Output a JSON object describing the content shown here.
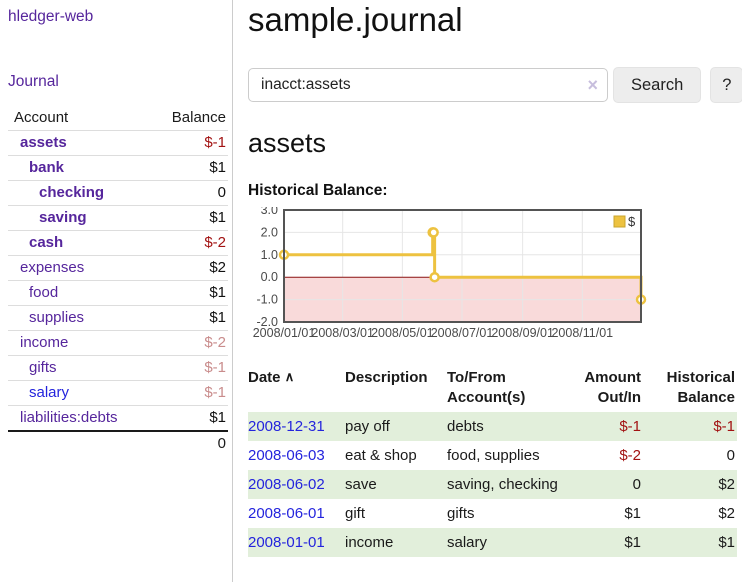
{
  "colors": {
    "link_purple": "#56269c",
    "link_blue": "#2424dd",
    "negative_strong": "#a21212",
    "negative_dim": "#c98c8c",
    "row_stripe_green": "#e2efdb",
    "button_bg": "#ededed",
    "chart_line_gold": "#edc240",
    "chart_negative_fill": "#f9dada",
    "chart_zero_line": "#8b1313",
    "chart_border": "#545454",
    "chart_grid": "#e6e6e6"
  },
  "sidebar": {
    "app_title": "hledger-web",
    "journal_label": "Journal",
    "table": {
      "account_header": "Account",
      "balance_header": "Balance",
      "total": "0"
    },
    "accounts": [
      {
        "name": "assets",
        "depth": 1,
        "bold": true,
        "balance": "$-1",
        "balance_class": "neg-strong"
      },
      {
        "name": "bank",
        "depth": 2,
        "bold": true,
        "balance": "$1",
        "balance_class": ""
      },
      {
        "name": "checking",
        "depth": 3,
        "bold": true,
        "balance": "0",
        "balance_class": ""
      },
      {
        "name": "saving",
        "depth": 3,
        "bold": true,
        "balance": "$1",
        "balance_class": ""
      },
      {
        "name": "cash",
        "depth": 2,
        "bold": true,
        "balance": "$-2",
        "balance_class": "neg-strong"
      },
      {
        "name": "expenses",
        "depth": 1,
        "bold": false,
        "balance": "$2",
        "balance_class": ""
      },
      {
        "name": "food",
        "depth": 2,
        "bold": false,
        "balance": "$1",
        "balance_class": ""
      },
      {
        "name": "supplies",
        "depth": 2,
        "bold": false,
        "balance": "$1",
        "balance_class": ""
      },
      {
        "name": "income",
        "depth": 1,
        "bold": false,
        "balance": "$-2",
        "balance_class": "neg-dim"
      },
      {
        "name": "gifts",
        "depth": 2,
        "bold": false,
        "balance": "$-1",
        "balance_class": "neg-dim"
      },
      {
        "name": "salary",
        "depth": 2,
        "bold": false,
        "balance": "$-1",
        "balance_class": "neg-dim",
        "link_blue": true
      },
      {
        "name": "liabilities:debts",
        "depth": 1,
        "bold": false,
        "balance": "$1",
        "balance_class": ""
      }
    ]
  },
  "main": {
    "title": "sample.journal",
    "search": {
      "value": "inacct:assets",
      "clear_icon": "×",
      "button_label": "Search",
      "help_label": "?"
    },
    "account_heading": "assets",
    "chart_heading": "Historical Balance:"
  },
  "chart_data": {
    "type": "line",
    "title": "Historical Balance:",
    "step": true,
    "series": [
      {
        "name": "$",
        "color": "#edc240",
        "points": [
          [
            "2008-01-01",
            1
          ],
          [
            "2008-06-01",
            2
          ],
          [
            "2008-06-02",
            2
          ],
          [
            "2008-06-03",
            0
          ],
          [
            "2008-12-31",
            -1
          ]
        ]
      }
    ],
    "xlim": [
      "2008-01-01",
      "2008-12-31"
    ],
    "ylim": [
      -2,
      3
    ],
    "y_ticks": [
      3.0,
      2.0,
      1.0,
      0.0,
      -1.0,
      -2.0
    ],
    "x_ticks": [
      "2008/01/01",
      "2008/03/01",
      "2008/05/01",
      "2008/07/01",
      "2008/09/01",
      "2008/11/01"
    ],
    "grid": true,
    "legend_position": "top-right",
    "legend_label": "$",
    "negative_region_fill": "#f9dada",
    "zero_line_color": "#8b1313",
    "grid_color": "#e6e6e6",
    "border_color": "#545454"
  },
  "transactions": {
    "headers": {
      "date": "Date",
      "sort_ascending_icon": "∧",
      "description": "Description",
      "accounts": "To/From Account(s)",
      "amount": "Amount Out/In",
      "balance": "Historical Balance"
    },
    "rows": [
      {
        "date": "2008-12-31",
        "description": "pay off",
        "accounts": "debts",
        "amount": "$-1",
        "amount_negative": true,
        "balance": "$-1",
        "balance_negative": true
      },
      {
        "date": "2008-06-03",
        "description": "eat & shop",
        "accounts": "food, supplies",
        "amount": "$-2",
        "amount_negative": true,
        "balance": "0",
        "balance_negative": false
      },
      {
        "date": "2008-06-02",
        "description": "save",
        "accounts": "saving, checking",
        "amount": "0",
        "amount_negative": false,
        "balance": "$2",
        "balance_negative": false
      },
      {
        "date": "2008-06-01",
        "description": "gift",
        "accounts": "gifts",
        "amount": "$1",
        "amount_negative": false,
        "balance": "$2",
        "balance_negative": false
      },
      {
        "date": "2008-01-01",
        "description": "income",
        "accounts": "salary",
        "amount": "$1",
        "amount_negative": false,
        "balance": "$1",
        "balance_negative": false
      }
    ]
  }
}
